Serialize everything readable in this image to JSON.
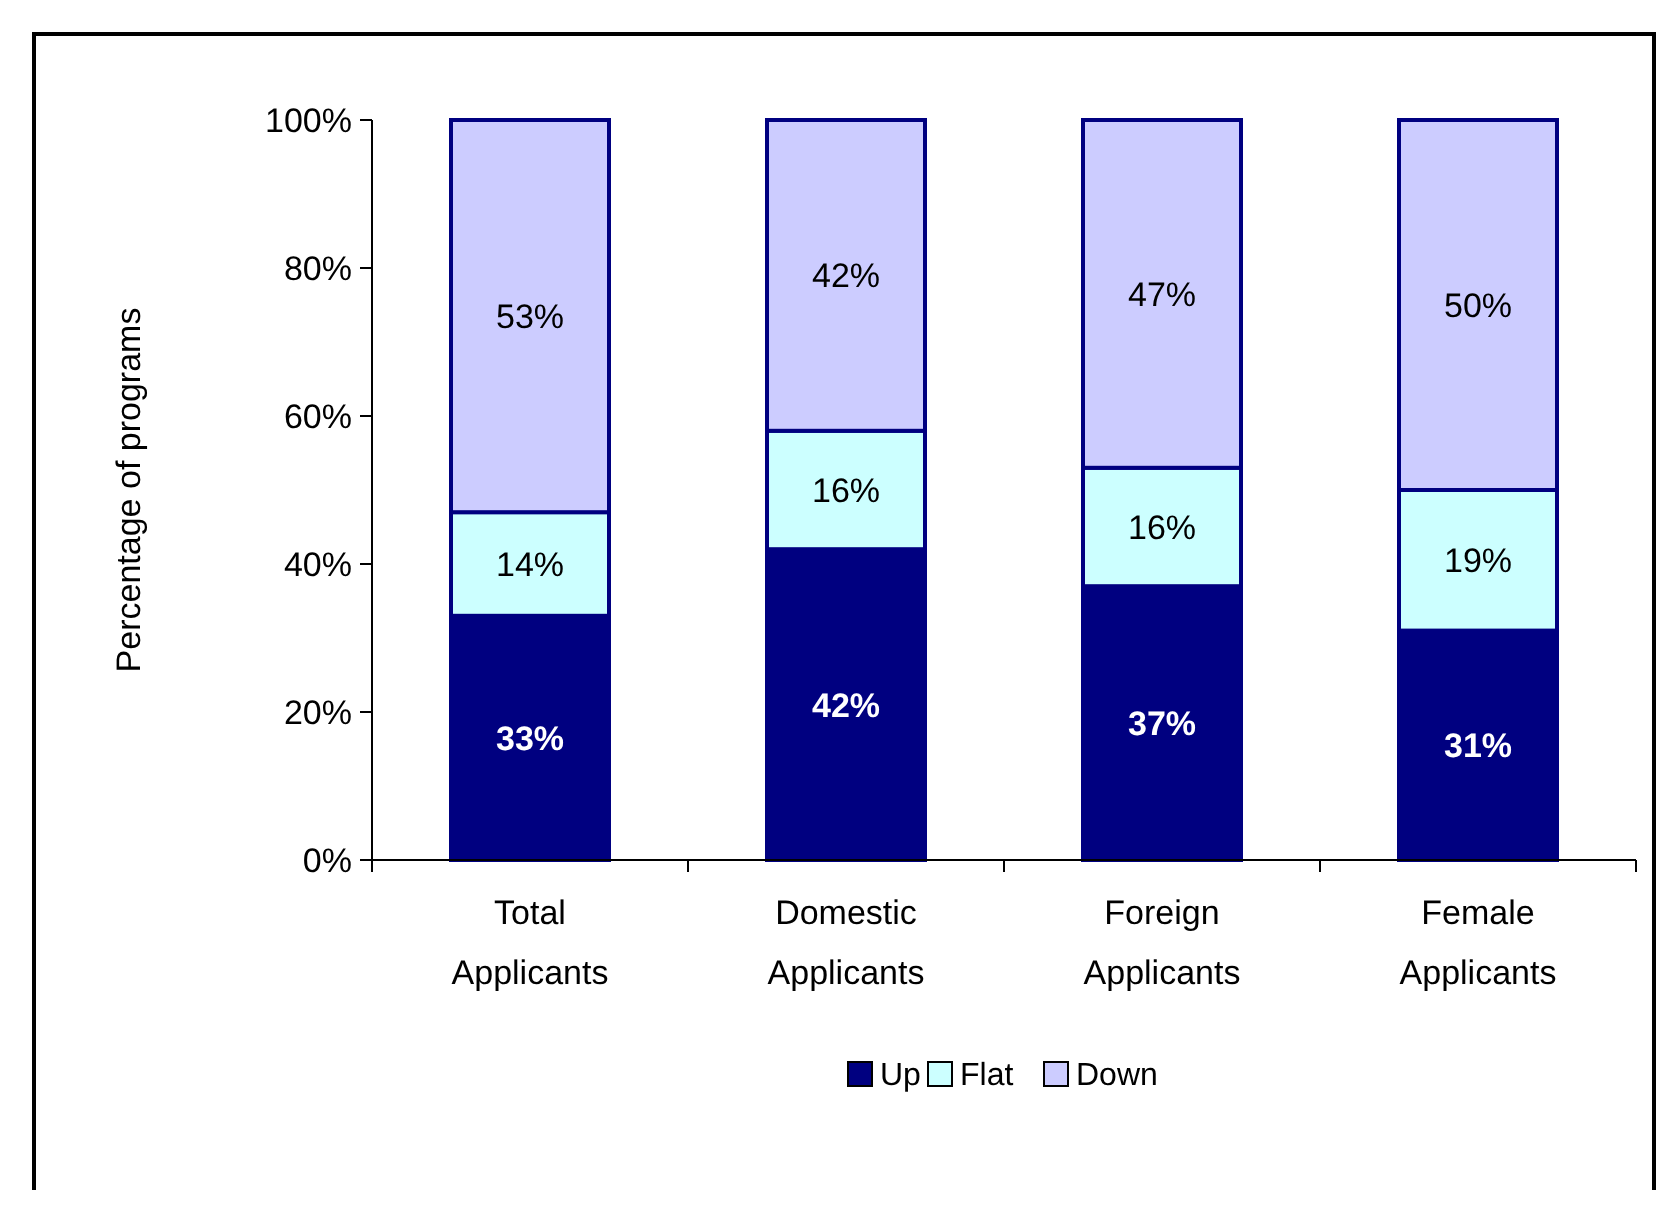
{
  "chart_data": {
    "type": "bar",
    "stacked": true,
    "ylabel": "Percentage of programs",
    "categories": [
      "Total Applicants",
      "Domestic Applicants",
      "Foreign Applicants",
      "Female Applicants"
    ],
    "series": [
      {
        "name": "Up",
        "color": "#000080",
        "values": [
          33,
          42,
          37,
          31
        ],
        "value_labels": [
          "33%",
          "42%",
          "37%",
          "31%"
        ]
      },
      {
        "name": "Flat",
        "color": "#ccffff",
        "values": [
          14,
          16,
          16,
          19
        ],
        "value_labels": [
          "14%",
          "16%",
          "16%",
          "19%"
        ]
      },
      {
        "name": "Down",
        "color": "#ccccff",
        "values": [
          53,
          42,
          47,
          50
        ],
        "value_labels": [
          "53%",
          "42%",
          "47%",
          "50%"
        ]
      }
    ],
    "ylim": [
      0,
      100
    ],
    "yticks": [
      {
        "value": 0,
        "label": "0%"
      },
      {
        "value": 20,
        "label": "20%"
      },
      {
        "value": 40,
        "label": "40%"
      },
      {
        "value": 60,
        "label": "60%"
      },
      {
        "value": 80,
        "label": "80%"
      },
      {
        "value": 100,
        "label": "100%"
      }
    ],
    "grid": false,
    "legend": "bottom"
  }
}
